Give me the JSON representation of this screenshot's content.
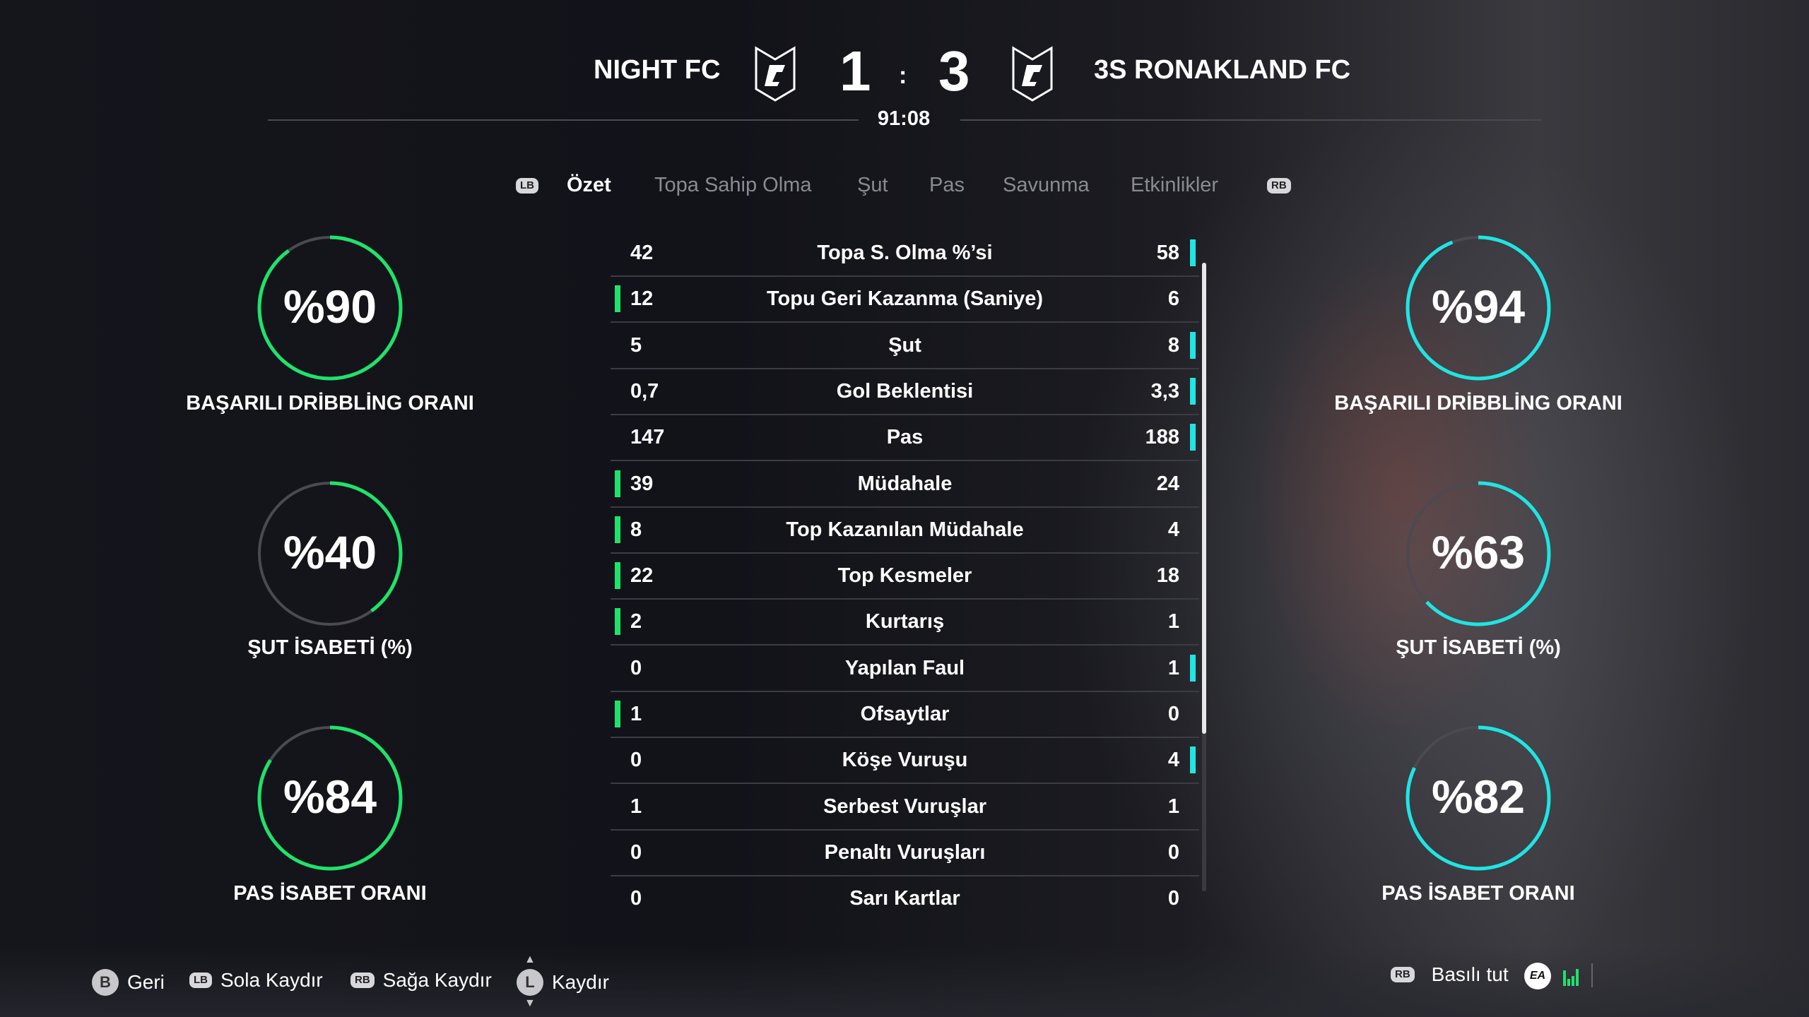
{
  "header": {
    "home_team": "NIGHT FC",
    "away_team": "3S RONAKLAND FC",
    "home_score": "1",
    "separator": ":",
    "away_score": "3",
    "match_time": "91:08"
  },
  "tabs": {
    "left_bumper": "LB",
    "right_bumper": "RB",
    "items": [
      "Özet",
      "Topa Sahip Olma",
      "Şut",
      "Pas",
      "Savunma",
      "Etkinlikler"
    ],
    "active": "Özet"
  },
  "colors": {
    "home": "#1ee36b",
    "away": "#1fe5e3",
    "ring_track": "#4a4a50"
  },
  "stats": [
    {
      "label": "Topa S. Olma %’si",
      "home": "42",
      "away": "58",
      "leader": "away"
    },
    {
      "label": "Topu Geri Kazanma (Saniye)",
      "home": "12",
      "away": "6",
      "leader": "home"
    },
    {
      "label": "Şut",
      "home": "5",
      "away": "8",
      "leader": "away"
    },
    {
      "label": "Gol Beklentisi",
      "home": "0,7",
      "away": "3,3",
      "leader": "away"
    },
    {
      "label": "Pas",
      "home": "147",
      "away": "188",
      "leader": "away"
    },
    {
      "label": "Müdahale",
      "home": "39",
      "away": "24",
      "leader": "home"
    },
    {
      "label": "Top Kazanılan Müdahale",
      "home": "8",
      "away": "4",
      "leader": "home"
    },
    {
      "label": "Top Kesmeler",
      "home": "22",
      "away": "18",
      "leader": "home"
    },
    {
      "label": "Kurtarış",
      "home": "2",
      "away": "1",
      "leader": "home"
    },
    {
      "label": "Yapılan Faul",
      "home": "0",
      "away": "1",
      "leader": "away"
    },
    {
      "label": "Ofsaytlar",
      "home": "1",
      "away": "0",
      "leader": "home"
    },
    {
      "label": "Köşe Vuruşu",
      "home": "0",
      "away": "4",
      "leader": "away"
    },
    {
      "label": "Serbest Vuruşlar",
      "home": "1",
      "away": "1",
      "leader": "none"
    },
    {
      "label": "Penaltı Vuruşları",
      "home": "0",
      "away": "0",
      "leader": "none"
    },
    {
      "label": "Sarı Kartlar",
      "home": "0",
      "away": "0",
      "leader": "none"
    }
  ],
  "home_rings": [
    {
      "text": "%90",
      "value": 90,
      "label": "BAŞARILI DRİBBLİNG ORANI"
    },
    {
      "text": "%40",
      "value": 40,
      "label": "ŞUT İSABETİ (%)"
    },
    {
      "text": "%84",
      "value": 84,
      "label": "PAS İSABET ORANI"
    }
  ],
  "away_rings": [
    {
      "text": "%94",
      "value": 94,
      "label": "BAŞARILI DRİBBLİNG ORANI"
    },
    {
      "text": "%63",
      "value": 63,
      "label": "ŞUT İSABETİ (%)"
    },
    {
      "text": "%82",
      "value": 82,
      "label": "PAS İSABET ORANI"
    }
  ],
  "footer": {
    "back": {
      "button": "B",
      "label": "Geri"
    },
    "left": {
      "button": "LB",
      "label": "Sola Kaydır"
    },
    "right": {
      "button": "RB",
      "label": "Sağa Kaydır"
    },
    "scroll": {
      "button": "L",
      "label": "Kaydır"
    },
    "hold": {
      "button": "RB",
      "label": "Basılı tut"
    },
    "ea_logo": "EA"
  }
}
